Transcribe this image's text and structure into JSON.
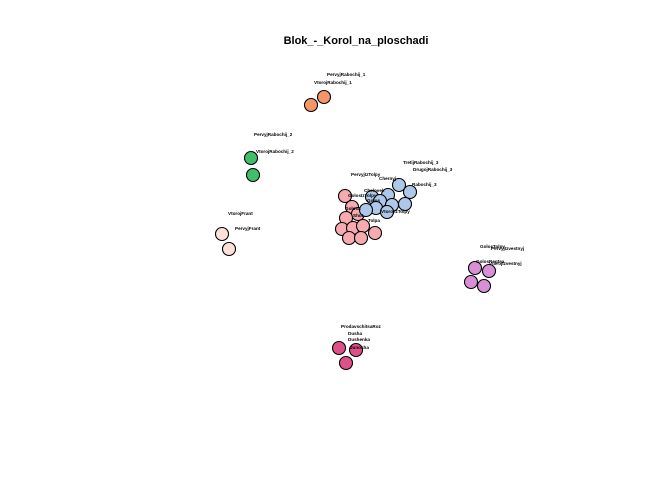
{
  "title": "Blok_-_Korol_na_ploschadi",
  "colors": {
    "orange": "#f4956a",
    "green": "#3fbf6a",
    "peach": "#fde0d9",
    "pink": "#f7aab0",
    "blue": "#adc8ea",
    "violet": "#d98fd6",
    "magenta": "#e05088"
  },
  "labels": {
    "pervyj_rabochij_1": "PervyjRabochij_1",
    "vtoroj_rabochij_1": "VtorojRabochij_1",
    "pervyj_rabochij_2": "PervyjRabochij_2",
    "vtoroj_rabochij_2": "VtorojRabochij_2",
    "tretij_rabochij_3": "TretijRabochij_3",
    "drugoj_rabochij_3": "DrugojRabochij_3",
    "pervyj_iz_tolpy": "PervyjIzTolpy",
    "chernyj": "Chernyj",
    "rabochij_3": "Rabochij_3",
    "vtoroj_iz_tolpy": "VtorojIzTolpy",
    "vtoroj_front": "VtorojFrant",
    "pervyj_front": "PervyjFrant",
    "golos_tolpy": "GolosTolpy",
    "pervyj_izvestnyj": "PervyjIzvestnyj",
    "golos_regtsa": "GolosRegtsa",
    "vtoroj_izvestnyj": "VtorojIzvestnyj",
    "prodavschitsa_roz": "ProdavschitsaRoz",
    "dusha": "Dusha",
    "dusha2": "Dushenka",
    "junosha": "Junosha",
    "cluster_a": "Chelovek",
    "cluster_b": "GolosIzTolpy",
    "cluster_c": "Golos",
    "cluster_d": "Golosa",
    "cluster_e": "Shut",
    "cluster_f": "Tolpa"
  }
}
